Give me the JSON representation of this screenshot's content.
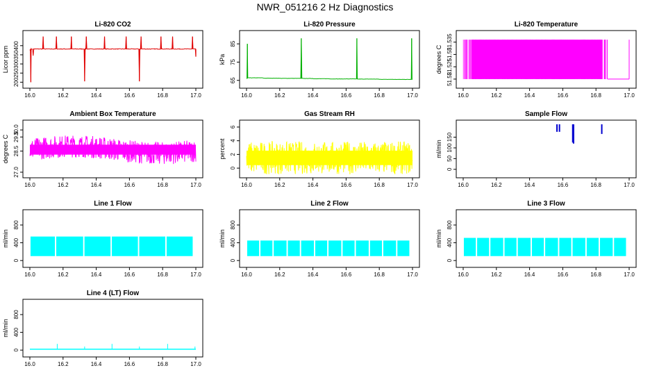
{
  "page_title": "NWR_051216  2 Hz Diagnostics",
  "chart_data": [
    {
      "type": "line",
      "title": "Li-820 CO2",
      "ylabel": "Licor ppm",
      "color": "#e00000",
      "xlim": [
        16.0,
        17.0
      ],
      "ylim": [
        190,
        460
      ],
      "xticks": [
        "16.0",
        "16.2",
        "16.4",
        "16.6",
        "16.8",
        "17.0"
      ],
      "yticks": [
        200,
        250,
        300,
        350,
        400
      ],
      "x": [
        16.0,
        16.006,
        16.01,
        16.02,
        16.06,
        16.08,
        16.09,
        16.12,
        16.16,
        16.19,
        16.25,
        16.32,
        16.33,
        16.34,
        16.4,
        16.45,
        16.52,
        16.58,
        16.65,
        16.66,
        16.67,
        16.73,
        16.79,
        16.82,
        16.86,
        16.93,
        16.98,
        17.0
      ],
      "y": [
        375,
        200,
        380,
        345,
        382,
        450,
        382,
        382,
        450,
        382,
        450,
        382,
        205,
        450,
        382,
        450,
        382,
        450,
        382,
        205,
        450,
        382,
        450,
        382,
        450,
        382,
        450,
        340
      ]
    },
    {
      "type": "line",
      "title": "Li-820 Pressure",
      "ylabel": "kPa",
      "color": "#00b000",
      "xlim": [
        16.0,
        17.0
      ],
      "ylim": [
        63,
        90
      ],
      "xticks": [
        "16.0",
        "16.2",
        "16.4",
        "16.6",
        "16.8",
        "17.0"
      ],
      "yticks": [
        65,
        75,
        85
      ],
      "x": [
        16.0,
        16.005,
        16.01,
        16.1,
        16.2,
        16.32,
        16.33,
        16.34,
        16.4,
        16.5,
        16.6,
        16.66,
        16.665,
        16.67,
        16.8,
        16.9,
        16.99,
        16.995,
        17.0
      ],
      "y": [
        66,
        85,
        66.5,
        66.3,
        66.1,
        66.1,
        88,
        66.1,
        66,
        65.8,
        65.8,
        65.8,
        88,
        65.8,
        65.6,
        65.5,
        65.5,
        88,
        65.5
      ]
    },
    {
      "type": "line",
      "title": "Li-820 Temperature",
      "ylabel": "degrees C",
      "color": "#ff00ff",
      "xlim": [
        16.0,
        17.0
      ],
      "ylim": [
        51.518,
        51.538
      ],
      "xticks": [
        "16.0",
        "16.2",
        "16.4",
        "16.6",
        "16.8",
        "17.0"
      ],
      "yticks": [
        51.52,
        51.525,
        51.53,
        51.535
      ],
      "dense_band": {
        "x_start": 16.0,
        "x_end": 16.87,
        "low": 51.52,
        "high": 51.536
      },
      "tail": {
        "x_start": 16.87,
        "x_end": 17.0,
        "value": 51.52
      }
    },
    {
      "type": "line",
      "title": "Ambient Box Temperature",
      "ylabel": "degrees C",
      "color": "#ff00ff",
      "xlim": [
        16.0,
        17.0
      ],
      "ylim": [
        26.9,
        30.4
      ],
      "xticks": [
        "16.0",
        "16.2",
        "16.4",
        "16.6",
        "16.8",
        "17.0"
      ],
      "yticks": [
        27.0,
        28.5,
        29.5,
        30.0
      ],
      "ytick_labels": [
        "27.0",
        "28.5",
        "29.5",
        "30.0"
      ],
      "band": {
        "low": 27.8,
        "high": 29.4,
        "mid": 28.6
      }
    },
    {
      "type": "line",
      "title": "Gas Stream RH",
      "ylabel": "percent",
      "color": "#ffff00",
      "xlim": [
        16.0,
        17.0
      ],
      "ylim": [
        -0.8,
        6.4
      ],
      "xticks": [
        "16.0",
        "16.2",
        "16.4",
        "16.6",
        "16.8",
        "17.0"
      ],
      "yticks": [
        0,
        2,
        4,
        6
      ],
      "band": {
        "low": 0.0,
        "high": 4.8,
        "mid": 1.5
      }
    },
    {
      "type": "line",
      "title": "Sample Flow",
      "ylabel": "ml/min",
      "color": "#0000d0",
      "xlim": [
        16.0,
        17.0
      ],
      "ylim": [
        -20,
        210
      ],
      "xticks": [
        "16.0",
        "16.2",
        "16.4",
        "16.6",
        "16.8",
        "17.0"
      ],
      "yticks": [
        0,
        50,
        100,
        150
      ],
      "spikes": [
        [
          16.565,
          175
        ],
        [
          16.58,
          175
        ],
        [
          16.66,
          125
        ],
        [
          16.665,
          120
        ],
        [
          16.835,
          165
        ]
      ]
    },
    {
      "type": "line",
      "title": "Line 1 Flow",
      "ylabel": "ml/min",
      "color": "#00ffff",
      "xlim": [
        16.0,
        17.0
      ],
      "ylim": [
        -60,
        1050
      ],
      "xticks": [
        "16.0",
        "16.2",
        "16.4",
        "16.6",
        "16.8",
        "17.0"
      ],
      "yticks": [
        0,
        400,
        800
      ],
      "ytick_labels": [
        "0",
        "400",
        "800"
      ],
      "band": {
        "low": 100,
        "high": 540
      },
      "gaps": [
        16.155,
        16.325,
        16.49,
        16.655,
        16.82,
        16.985
      ]
    },
    {
      "type": "line",
      "title": "Line 2 Flow",
      "ylabel": "ml/min",
      "color": "#00ffff",
      "xlim": [
        16.0,
        17.0
      ],
      "ylim": [
        -60,
        1050
      ],
      "xticks": [
        "16.0",
        "16.2",
        "16.4",
        "16.6",
        "16.8",
        "17.0"
      ],
      "yticks": [
        0,
        400,
        800
      ],
      "ytick_labels": [
        "0",
        "400",
        "800"
      ],
      "band": {
        "low": 100,
        "high": 450
      },
      "gaps": [
        16.08,
        16.16,
        16.245,
        16.325,
        16.41,
        16.49,
        16.575,
        16.655,
        16.74,
        16.82,
        16.905,
        16.985
      ]
    },
    {
      "type": "line",
      "title": "Line 3 Flow",
      "ylabel": "ml/min",
      "color": "#00ffff",
      "xlim": [
        16.0,
        17.0
      ],
      "ylim": [
        -60,
        1050
      ],
      "xticks": [
        "16.0",
        "16.2",
        "16.4",
        "16.6",
        "16.8",
        "17.0"
      ],
      "yticks": [
        0,
        400,
        800
      ],
      "ytick_labels": [
        "0",
        "400",
        "800"
      ],
      "band": {
        "low": 100,
        "high": 510
      },
      "gaps": [
        16.08,
        16.16,
        16.245,
        16.325,
        16.41,
        16.49,
        16.575,
        16.655,
        16.74,
        16.82,
        16.905,
        16.985
      ]
    },
    {
      "type": "line",
      "title": "Line 4 (LT) Flow",
      "ylabel": "ml/min",
      "color": "#00ffff",
      "xlim": [
        16.0,
        17.0
      ],
      "ylim": [
        -60,
        1050
      ],
      "xticks": [
        "16.0",
        "16.2",
        "16.4",
        "16.6",
        "16.8",
        "17.0"
      ],
      "yticks": [
        0,
        400,
        800
      ],
      "ytick_labels": [
        "0",
        "400",
        "800"
      ],
      "baseline": 20,
      "spikes": [
        [
          16.165,
          140
        ],
        [
          16.33,
          80
        ],
        [
          16.495,
          140
        ],
        [
          16.66,
          80
        ],
        [
          16.83,
          140
        ],
        [
          16.995,
          80
        ]
      ]
    }
  ]
}
